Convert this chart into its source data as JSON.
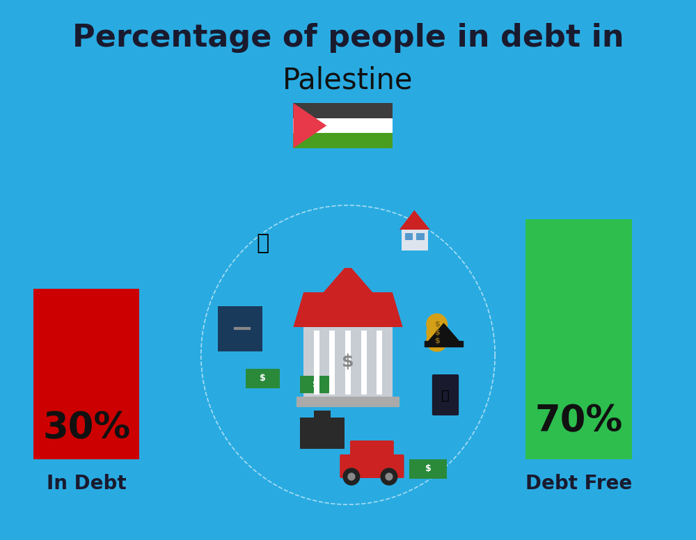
{
  "background_color": "#29ABE2",
  "title_line1": "Percentage of people in debt in",
  "title_line2": "Palestine",
  "title1_color": "#1a1a2e",
  "title2_color": "#111111",
  "title1_fontsize": 32,
  "title2_fontsize": 30,
  "bar_left_color": "#CC0000",
  "bar_right_color": "#2DBE4E",
  "bar_left_label": "30%",
  "bar_right_label": "70%",
  "bar_left_caption": "In Debt",
  "bar_right_caption": "Debt Free",
  "label_color": "#111111",
  "caption_color": "#1a1a2e",
  "label_fontsize": 38,
  "caption_fontsize": 20,
  "flag_black": "#3d3d3d",
  "flag_white": "#ffffff",
  "flag_green": "#4a9e1f",
  "flag_red": "#e8394a"
}
